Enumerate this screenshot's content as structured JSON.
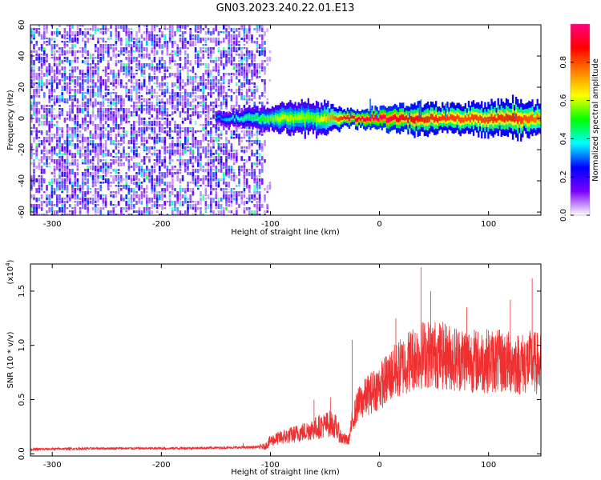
{
  "title": "GN03.2023.240.22.01.E13",
  "chart_data": [
    {
      "type": "heatmap",
      "title": "GN03.2023.240.22.01.E13",
      "xlabel": "Height of straight line (km)",
      "ylabel": "Frequency (Hz)",
      "xlim": [
        -320,
        148
      ],
      "ylim": [
        -62,
        60
      ],
      "xticks": [
        -300,
        -200,
        -100,
        0,
        100
      ],
      "yticks": [
        -60,
        -40,
        -20,
        0,
        20,
        40,
        60
      ],
      "grid": false,
      "colorbar": {
        "label": "Normalized spectral amplitude",
        "range": [
          0.0,
          1.0
        ],
        "ticks": [
          "0.0",
          "0.2",
          "0.4",
          "0.6",
          "0.8"
        ],
        "colors": [
          "#ffffff",
          "#7a00ff",
          "#0000ff",
          "#00ffff",
          "#00ff00",
          "#ffff00",
          "#ff8000",
          "#ff0000",
          "#ff0080"
        ]
      },
      "noise_region": {
        "x": [
          -320,
          -110
        ],
        "y": [
          -62,
          60
        ],
        "amplitude": 0.2
      },
      "band": {
        "x_start": -150,
        "x_end": 148,
        "center_hz": 0,
        "half_width_hz": [
          [
            -150,
            2
          ],
          [
            -130,
            3
          ],
          [
            -110,
            4
          ],
          [
            -80,
            6
          ],
          [
            -50,
            6
          ],
          [
            -30,
            3
          ],
          [
            0,
            4
          ],
          [
            40,
            6
          ],
          [
            60,
            5
          ],
          [
            100,
            6
          ],
          [
            120,
            7
          ],
          [
            148,
            6
          ]
        ],
        "peak_amplitude": [
          [
            -150,
            0.25
          ],
          [
            -120,
            0.4
          ],
          [
            -90,
            0.55
          ],
          [
            -60,
            0.5
          ],
          [
            -30,
            0.85
          ],
          [
            0,
            0.9
          ],
          [
            40,
            0.8
          ],
          [
            80,
            0.75
          ],
          [
            120,
            0.8
          ],
          [
            148,
            0.7
          ]
        ]
      }
    },
    {
      "type": "line",
      "xlabel": "Height of straight line (km)",
      "ylabel": "SNR (10 * v/v)",
      "y_multiplier": "(x10^4)",
      "xlim": [
        -320,
        148
      ],
      "ylim": [
        -0.02,
        1.75
      ],
      "xticks": [
        -300,
        -200,
        -100,
        0,
        100
      ],
      "yticks": [
        "0.0",
        "0.5",
        "1.0",
        "1.5"
      ],
      "grid": false,
      "color": "#ee3030",
      "x": [
        -320,
        -300,
        -250,
        -200,
        -150,
        -120,
        -105,
        -100,
        -90,
        -70,
        -55,
        -45,
        -40,
        -35,
        -30,
        -28,
        -25,
        -20,
        -10,
        0,
        10,
        20,
        30,
        40,
        50,
        60,
        70,
        80,
        90,
        100,
        110,
        120,
        130,
        140,
        148
      ],
      "y": [
        0.04,
        0.045,
        0.05,
        0.05,
        0.055,
        0.06,
        0.065,
        0.12,
        0.15,
        0.2,
        0.25,
        0.28,
        0.25,
        0.15,
        0.12,
        0.13,
        0.3,
        0.45,
        0.55,
        0.62,
        0.72,
        0.8,
        0.88,
        0.92,
        0.92,
        0.9,
        0.88,
        0.88,
        0.85,
        0.86,
        0.85,
        0.84,
        0.83,
        0.85,
        0.82
      ],
      "spikes": [
        {
          "x": -125,
          "y": 0.1
        },
        {
          "x": -60,
          "y": 0.5
        },
        {
          "x": -45,
          "y": 0.52
        },
        {
          "x": -25,
          "y": 1.05
        },
        {
          "x": 15,
          "y": 1.25
        },
        {
          "x": 38,
          "y": 1.72
        },
        {
          "x": 47,
          "y": 1.5
        },
        {
          "x": 80,
          "y": 1.35
        },
        {
          "x": 120,
          "y": 1.42
        },
        {
          "x": 140,
          "y": 1.62
        }
      ],
      "noise_amplitude": 0.12
    }
  ]
}
